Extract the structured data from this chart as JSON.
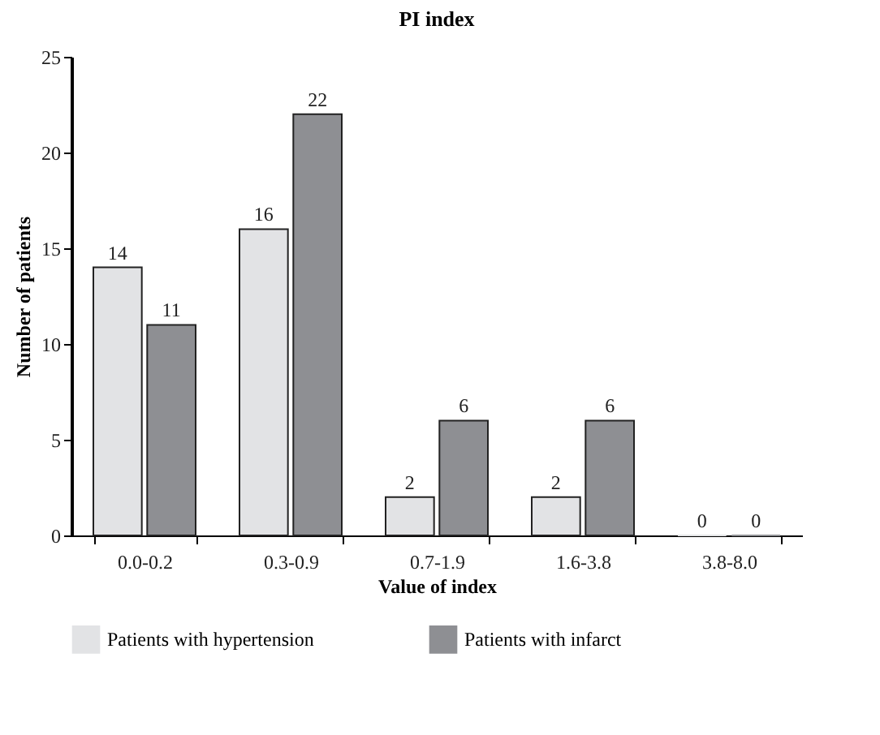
{
  "chart_data": {
    "type": "bar",
    "title": "PI index",
    "xlabel": "Value of index",
    "ylabel": "Number of patients",
    "categories": [
      "0.0-0.2",
      "0.3-0.9",
      "0.7-1.9",
      "1.6-3.8",
      "3.8-8.0"
    ],
    "series": [
      {
        "name": "Patients with hypertension",
        "color": "#e2e3e5",
        "values": [
          14,
          16,
          2,
          2,
          0
        ]
      },
      {
        "name": "Patients with infarct",
        "color": "#8e8f93",
        "values": [
          11,
          22,
          6,
          6,
          0
        ]
      }
    ],
    "ylim": [
      0,
      25
    ],
    "yticks": [
      0,
      5,
      10,
      15,
      20,
      25
    ],
    "grid": false,
    "legend": "bottom",
    "data_labels": true
  }
}
